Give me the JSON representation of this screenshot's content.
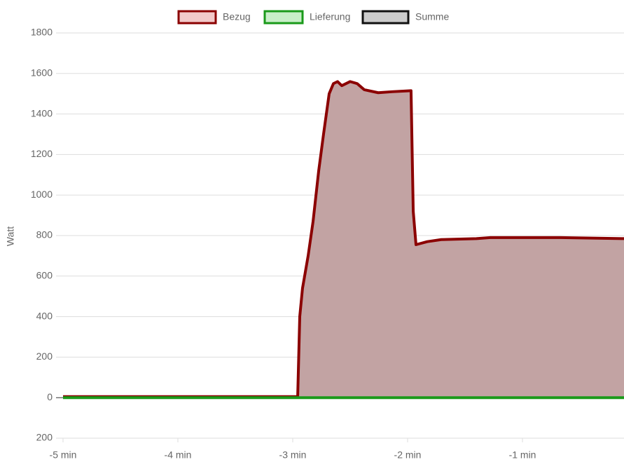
{
  "chart_data": {
    "type": "area",
    "y_label": "Watt",
    "ylim": [
      -200,
      1800
    ],
    "yticks": [
      {
        "value": -200,
        "label": "200"
      },
      0,
      200,
      400,
      600,
      800,
      1000,
      1200,
      1400,
      1600,
      1800
    ],
    "xlim": [
      -5,
      -0.116
    ],
    "xticks": [
      {
        "value": -5,
        "label": "-5 min"
      },
      {
        "value": -4,
        "label": "-4 min"
      },
      {
        "value": -3,
        "label": "-3 min"
      },
      {
        "value": -2,
        "label": "-2 min"
      },
      {
        "value": -1,
        "label": "-1 min"
      }
    ],
    "grid": true,
    "legend": "top",
    "series": [
      {
        "name": "Bezug",
        "color": "#8b0000",
        "fill": "#c2a3a3",
        "legend_fill": "#f2c9c9",
        "x": [
          -5,
          -2.957,
          -2.939,
          -2.915,
          -2.866,
          -2.823,
          -2.774,
          -2.732,
          -2.683,
          -2.646,
          -2.61,
          -2.573,
          -2.5,
          -2.439,
          -2.378,
          -2.256,
          -2.134,
          -1.97,
          -1.951,
          -1.927,
          -1.829,
          -1.707,
          -1.402,
          -1.28,
          -0.67,
          -0.116
        ],
        "values": [
          5,
          5,
          400,
          540,
          700,
          870,
          1120,
          1300,
          1500,
          1550,
          1560,
          1540,
          1560,
          1550,
          1520,
          1505,
          1510,
          1515,
          920,
          755,
          770,
          780,
          785,
          790,
          790,
          785
        ]
      },
      {
        "name": "Lieferung",
        "color": "#1a9a1a",
        "legend_fill": "#c9efc9",
        "x": [
          -5,
          -0.116
        ],
        "values": [
          0,
          0
        ]
      },
      {
        "name": "Summe",
        "color": "#111111",
        "legend_fill": "#cccccc"
      }
    ]
  }
}
